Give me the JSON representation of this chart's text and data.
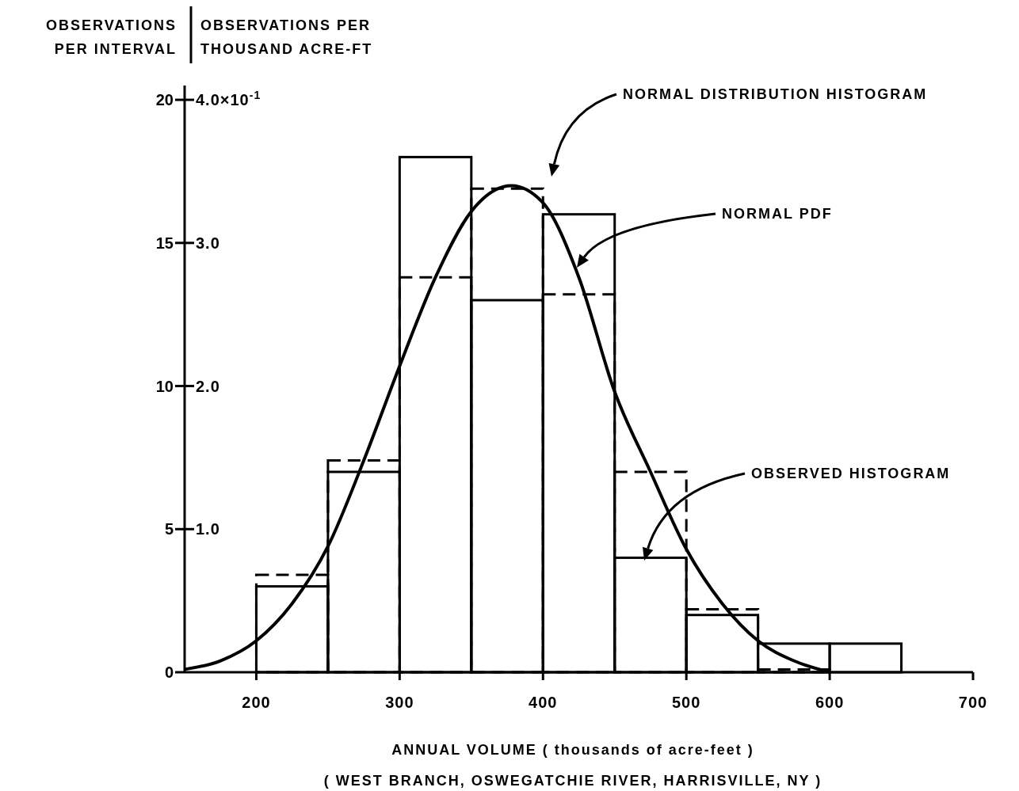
{
  "chart_data": {
    "type": "histogram",
    "ylabel": "OBSERVATIONS\nPER INTERVAL",
    "y2label": "OBSERVATIONS PER\nTHOUSAND ACRE-FT",
    "xlabel": "ANNUAL VOLUME ( thousands of acre-feet )",
    "bins": [
      200,
      250,
      300,
      350,
      400,
      450,
      500,
      550,
      600,
      650
    ],
    "series": [
      {
        "color": "#000000",
        "line_style": "solid",
        "values": [
          3,
          7,
          18,
          13,
          16,
          4,
          2,
          1,
          1
        ]
      },
      {
        "color": "#000000",
        "line_style": "dashed",
        "values": [
          3.4,
          7.4,
          13.8,
          16.9,
          13.2,
          7,
          2.2,
          0.1,
          0
        ]
      },
      {
        "type": "line",
        "color": "#000000",
        "line_style": "solid",
        "x": [
          150,
          175,
          200,
          225,
          250,
          275,
          300,
          325,
          350,
          378,
          400,
          425,
          450,
          475,
          500,
          525,
          550,
          575,
          600
        ],
        "values": [
          0.1,
          0.4,
          1.1,
          2.4,
          4.4,
          7.4,
          10.7,
          13.8,
          16.1,
          17,
          16.4,
          13.8,
          9.8,
          7.0,
          4.3,
          2.4,
          1.1,
          0.4,
          0
        ]
      }
    ],
    "xlim": [
      150,
      700
    ],
    "xticks": [
      200,
      300,
      400,
      500,
      600,
      700
    ],
    "ylim": [
      0,
      20.5
    ],
    "yticks": [
      0,
      5,
      10,
      15,
      20
    ],
    "y2lim": [
      0,
      4.1
    ],
    "y2ticks": [
      {
        "value": 1,
        "label": "1.0"
      },
      {
        "value": 2,
        "label": "2.0"
      },
      {
        "value": 3,
        "label": "3.0"
      },
      {
        "value": 4,
        "label": "4.0"
      }
    ],
    "grid": false,
    "annotations": [
      "NORMAL DISTRIBUTION HISTOGRAM",
      "NORMAL PDF",
      "OBSERVED HISTOGRAM",
      "×10$^{-1}$",
      "( WEST BRANCH, OSWEGATCHIE RIVER, HARRISVILLE, NY )"
    ]
  }
}
